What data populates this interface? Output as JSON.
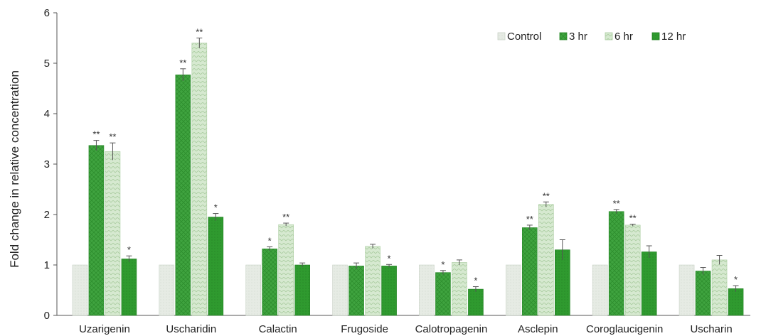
{
  "chart_data": {
    "type": "bar",
    "ylabel": "Fold change in relative concentration",
    "xlabel": "",
    "ylim": [
      0,
      6
    ],
    "yticks": [
      "0",
      "1",
      "2",
      "3",
      "4",
      "5",
      "6"
    ],
    "grid": false,
    "legend_position": "top-right",
    "categories": [
      "Uzarigenin",
      "Uscharidin",
      "Calactin",
      "Frugoside",
      "Calotropagenin",
      "Asclepin",
      "Coroglaucigenin",
      "Uscharin"
    ],
    "series": [
      {
        "name": "Control",
        "values": [
          1.0,
          1.0,
          1.0,
          1.0,
          1.0,
          1.0,
          1.0,
          1.0
        ],
        "errors": [
          0,
          0,
          0,
          0,
          0,
          0,
          0,
          0
        ],
        "significance": [
          "",
          "",
          "",
          "",
          "",
          "",
          "",
          ""
        ]
      },
      {
        "name": "3 hr",
        "values": [
          3.37,
          4.77,
          1.32,
          0.98,
          0.85,
          1.74,
          2.06,
          0.88
        ],
        "errors": [
          0.1,
          0.12,
          0.04,
          0.06,
          0.04,
          0.05,
          0.04,
          0.07
        ],
        "significance": [
          "**",
          "**",
          "*",
          "",
          "*",
          "**",
          "**",
          ""
        ]
      },
      {
        "name": "6 hr",
        "values": [
          3.25,
          5.4,
          1.8,
          1.37,
          1.05,
          2.2,
          1.79,
          1.1
        ],
        "errors": [
          0.17,
          0.1,
          0.03,
          0.04,
          0.05,
          0.05,
          0.02,
          0.09
        ],
        "significance": [
          "**",
          "**",
          "**",
          "",
          "",
          "**",
          "**",
          ""
        ]
      },
      {
        "name": "12 hr",
        "values": [
          1.12,
          1.95,
          1.0,
          0.98,
          0.52,
          1.3,
          1.26,
          0.53
        ],
        "errors": [
          0.06,
          0.07,
          0.04,
          0.03,
          0.05,
          0.2,
          0.12,
          0.06
        ],
        "significance": [
          "*",
          "*",
          "",
          "*",
          "*",
          "",
          "",
          "*"
        ]
      }
    ],
    "colors": {
      "Control": "#e3e8e1",
      "3 hr": "#3fa33f",
      "6 hr": "#cde3c7",
      "12 hr": "#2f9a2f"
    }
  }
}
